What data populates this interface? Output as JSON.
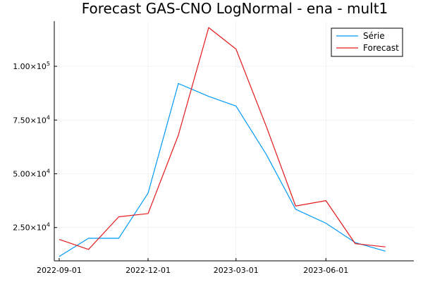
{
  "chart_data": {
    "type": "line",
    "title": "Forecast GAS-CNO LogNormal - ena - mult1",
    "xlabel": "",
    "ylabel": "",
    "x": [
      "2022-09-01",
      "2022-10-01",
      "2022-11-01",
      "2022-12-01",
      "2023-01-01",
      "2023-02-01",
      "2023-03-01",
      "2023-04-01",
      "2023-05-01",
      "2023-06-01",
      "2023-07-01",
      "2023-08-01"
    ],
    "x_ticks": [
      "2022-09-01",
      "2022-12-01",
      "2023-03-01",
      "2023-06-01"
    ],
    "y_ticks": [
      {
        "value": 25000,
        "mantissa": "2.50×10",
        "exponent": "4"
      },
      {
        "value": 50000,
        "mantissa": "5.00×10",
        "exponent": "4"
      },
      {
        "value": 75000,
        "mantissa": "7.50×10",
        "exponent": "4"
      },
      {
        "value": 100000,
        "mantissa": "1.00×10",
        "exponent": "5"
      }
    ],
    "xlim": [
      "2022-08-27",
      "2023-08-30"
    ],
    "ylim": [
      9500,
      121000
    ],
    "grid": true,
    "legend_position": "top-right",
    "series": [
      {
        "name": "Série",
        "color": "#009AFA",
        "values": [
          11500,
          20000,
          20000,
          41000,
          92000,
          86000,
          81500,
          59000,
          33500,
          27000,
          18000,
          14000
        ]
      },
      {
        "name": "Forecast",
        "color": "#E31A1C",
        "values": [
          19500,
          14800,
          30000,
          31500,
          68000,
          118000,
          108000,
          72000,
          35000,
          37500,
          17500,
          16000
        ]
      }
    ]
  }
}
